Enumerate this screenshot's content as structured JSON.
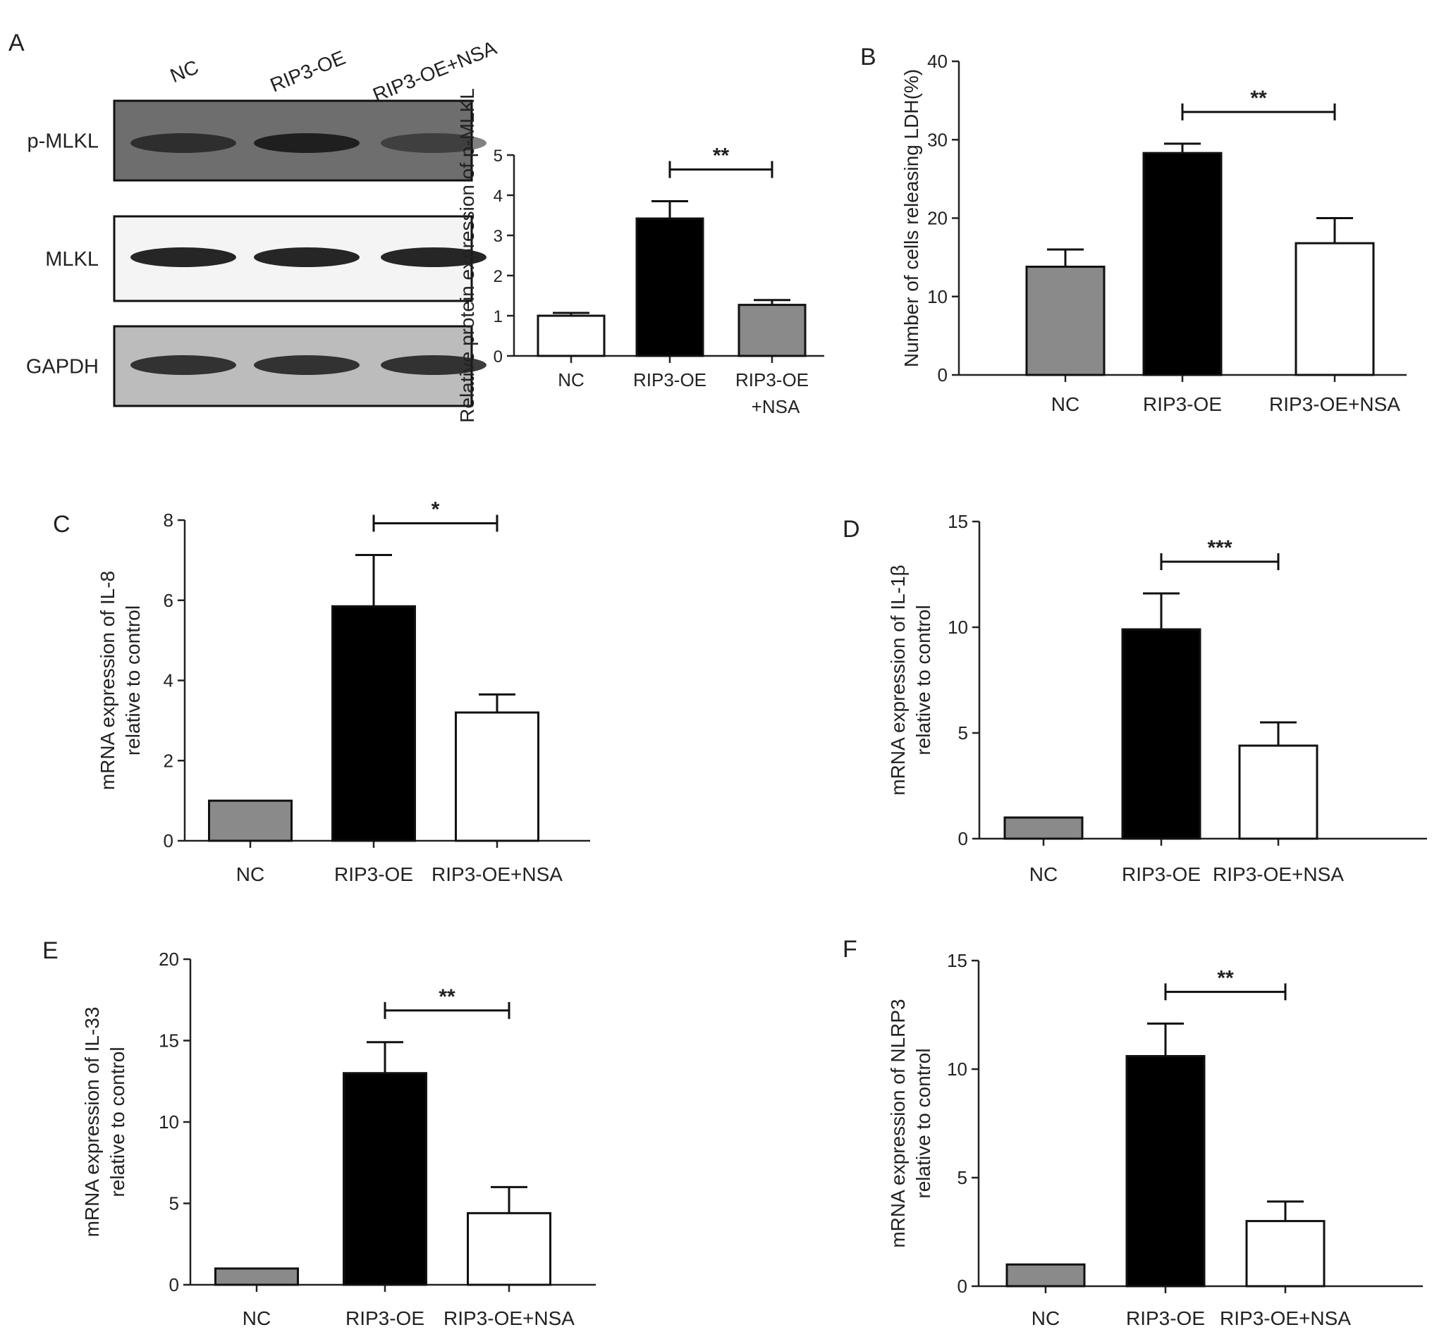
{
  "colors": {
    "gray": "#8a8a8a",
    "black": "#000000",
    "white": "#ffffff",
    "axis": "#222222"
  },
  "blot": {
    "panel_label": "A",
    "lanes": [
      "NC",
      "RIP3-OE",
      "RIP3-OE+NSA"
    ],
    "rows": [
      "p-MLKL",
      "MLKL",
      "GAPDH"
    ]
  },
  "chart_data": [
    {
      "id": "A",
      "panel_label": "",
      "type": "bar",
      "categories": [
        "NC",
        "RIP3-OE",
        "RIP3-OE\n+NSA"
      ],
      "values": [
        1.0,
        3.42,
        1.27
      ],
      "errors": [
        0.07,
        0.43,
        0.12
      ],
      "bar_colors": [
        "#ffffff",
        "#000000",
        "#8a8a8a"
      ],
      "ylabel": "Relative protein expression of p-MLKL",
      "ylim": [
        0,
        5
      ],
      "yticks": [
        0,
        1,
        2,
        3,
        4,
        5
      ],
      "significance": {
        "from": 1,
        "to": 2,
        "label": "**"
      }
    },
    {
      "id": "B",
      "panel_label": "B",
      "type": "bar",
      "categories": [
        "NC",
        "RIP3-OE",
        "RIP3-OE+NSA"
      ],
      "values": [
        13.8,
        28.3,
        16.8
      ],
      "errors": [
        2.2,
        1.2,
        3.2
      ],
      "bar_colors": [
        "#8a8a8a",
        "#000000",
        "#ffffff"
      ],
      "ylabel": "Number of cells releasing LDH(%)",
      "ylim": [
        0,
        40
      ],
      "yticks": [
        0,
        10,
        20,
        30,
        40
      ],
      "significance": {
        "from": 1,
        "to": 2,
        "label": "**"
      }
    },
    {
      "id": "C",
      "panel_label": "C",
      "type": "bar",
      "categories": [
        "NC",
        "RIP3-OE",
        "RIP3-OE+NSA"
      ],
      "values": [
        1.0,
        5.85,
        3.2
      ],
      "errors": [
        0,
        1.28,
        0.45
      ],
      "bar_colors": [
        "#8a8a8a",
        "#000000",
        "#ffffff"
      ],
      "ylabel": [
        "mRNA expression of IL-8",
        "relative to control"
      ],
      "ylim": [
        0,
        8
      ],
      "yticks": [
        0,
        2,
        4,
        6,
        8
      ],
      "significance": {
        "from": 1,
        "to": 2,
        "label": "*"
      }
    },
    {
      "id": "D",
      "panel_label": "D",
      "type": "bar",
      "categories": [
        "NC",
        "RIP3-OE",
        "RIP3-OE+NSA"
      ],
      "values": [
        1.0,
        9.9,
        4.4
      ],
      "errors": [
        0,
        1.7,
        1.1
      ],
      "bar_colors": [
        "#8a8a8a",
        "#000000",
        "#ffffff"
      ],
      "ylabel": [
        "mRNA expression of IL-1β",
        "relative to control"
      ],
      "ylim": [
        0,
        15
      ],
      "yticks": [
        0,
        5,
        10,
        15
      ],
      "significance": {
        "from": 1,
        "to": 2,
        "label": "***"
      }
    },
    {
      "id": "E",
      "panel_label": "E",
      "type": "bar",
      "categories": [
        "NC",
        "RIP3-OE",
        "RIP3-OE+NSA"
      ],
      "values": [
        1.0,
        13.0,
        4.4
      ],
      "errors": [
        0,
        1.9,
        1.6
      ],
      "bar_colors": [
        "#8a8a8a",
        "#000000",
        "#ffffff"
      ],
      "ylabel": [
        "mRNA expression of IL-33",
        "relative to control"
      ],
      "ylim": [
        0,
        20
      ],
      "yticks": [
        0,
        5,
        10,
        15,
        20
      ],
      "significance": {
        "from": 1,
        "to": 2,
        "label": "**"
      }
    },
    {
      "id": "F",
      "panel_label": "F",
      "type": "bar",
      "categories": [
        "NC",
        "RIP3-OE",
        "RIP3-OE+NSA"
      ],
      "values": [
        1.0,
        10.6,
        3.0
      ],
      "errors": [
        0,
        1.5,
        0.9
      ],
      "bar_colors": [
        "#8a8a8a",
        "#000000",
        "#ffffff"
      ],
      "ylabel": [
        "mRNA expression of NLRP3",
        "relative to control"
      ],
      "ylim": [
        0,
        15
      ],
      "yticks": [
        0,
        5,
        10,
        15
      ],
      "significance": {
        "from": 1,
        "to": 2,
        "label": "**"
      }
    }
  ]
}
